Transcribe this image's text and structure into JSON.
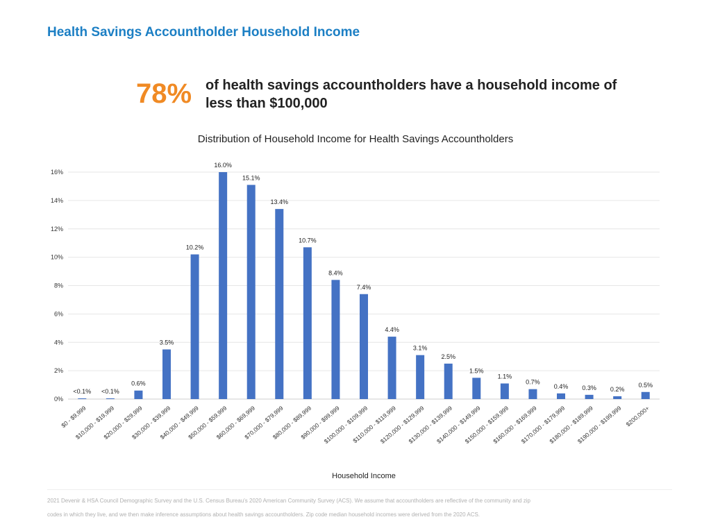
{
  "page": {
    "title": "Health Savings Accountholder Household Income",
    "highlight_percent": "78%",
    "highlight_text": "of health savings accountholders have a household income of less than $100,000"
  },
  "colors": {
    "title": "#1c7fc4",
    "highlight": "#f08a24",
    "bar": "#4472c4",
    "grid": "#e6e6e6"
  },
  "chart_data": {
    "type": "bar",
    "title": "Distribution of Household Income for Health Savings Accountholders",
    "xlabel": "Household Income",
    "ylabel": "",
    "ylim": [
      0,
      16
    ],
    "yticks": [
      0,
      2,
      4,
      6,
      8,
      10,
      12,
      14,
      16
    ],
    "ytick_labels": [
      "0%",
      "2%",
      "4%",
      "6%",
      "8%",
      "10%",
      "12%",
      "14%",
      "16%"
    ],
    "grid": true,
    "categories": [
      "$0 - $9,999",
      "$10,000 - $19,999",
      "$20,000 - $29,999",
      "$30,000 - $39,999",
      "$40,000 - $49,999",
      "$50,000 - $59,999",
      "$60,000 - $69,999",
      "$70,000 - $79,999",
      "$80,000 - $89,999",
      "$90,000 - $99,999",
      "$100,000 - $109,999",
      "$110,000 - $119,999",
      "$120,000 - $129,999",
      "$130,000 - $139,999",
      "$140,000 - $149,999",
      "$150,000 - $159,999",
      "$160,000 - $169,999",
      "$170,000 - $179,999",
      "$180,000 - $189,999",
      "$190,000 - $199,999",
      "$200,000+"
    ],
    "values": [
      0.05,
      0.05,
      0.6,
      3.5,
      10.2,
      16.0,
      15.1,
      13.4,
      10.7,
      8.4,
      7.4,
      4.4,
      3.1,
      2.5,
      1.5,
      1.1,
      0.7,
      0.4,
      0.3,
      0.2,
      0.5
    ],
    "data_labels": [
      "<0.1%",
      "<0.1%",
      "0.6%",
      "3.5%",
      "10.2%",
      "16.0%",
      "15.1%",
      "13.4%",
      "10.7%",
      "8.4%",
      "7.4%",
      "4.4%",
      "3.1%",
      "2.5%",
      "1.5%",
      "1.1%",
      "0.7%",
      "0.4%",
      "0.3%",
      "0.2%",
      "0.5%"
    ]
  },
  "footnote": {
    "line1": "2021 Devenir & HSA Council Demographic Survey and the U.S. Census Bureau's 2020 American Community Survey (ACS). We assume that accountholders are reflective of the community and zip",
    "line2": "codes in which they live, and we then make inference assumptions about health savings accountholders. Zip code median household incomes were derived from the 2020 ACS."
  }
}
